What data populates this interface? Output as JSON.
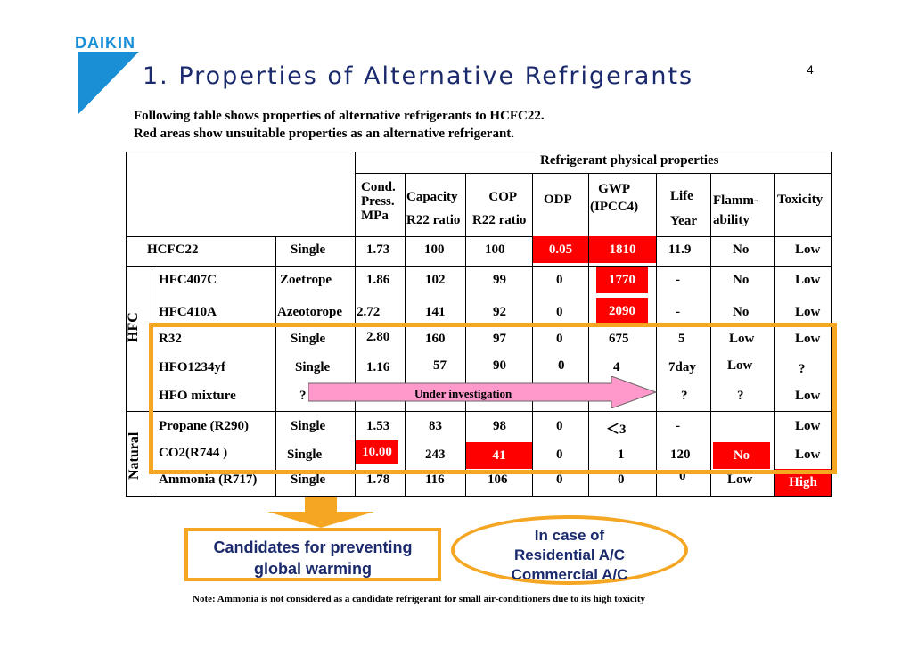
{
  "logo": "DAIKIN",
  "page_number": "4",
  "title": "1. Properties of Alternative Refrigerants",
  "intro": [
    "Following table shows properties of alternative refrigerants to HCFC22.",
    "Red areas show unsuitable properties as an alternative refrigerant."
  ],
  "table": {
    "group_header": "Refrigerant physical properties",
    "headers": {
      "cond": [
        "Cond.",
        "Press.",
        "MPa"
      ],
      "capacity": [
        "Capacity",
        "R22 ratio"
      ],
      "cop": [
        "COP",
        "R22 ratio"
      ],
      "odp": "ODP",
      "gwp": [
        "GWP",
        "(IPCC4)"
      ],
      "life": [
        "Life",
        "Year"
      ],
      "flamm": [
        "Flamm-",
        "ability"
      ],
      "toxicity": "Toxicity"
    },
    "group_labels": {
      "hfc": "HFC",
      "natural": "Natural"
    },
    "rows": [
      {
        "name": "HCFC22",
        "type": "Single",
        "cond": "1.73",
        "cap": "100",
        "cop": "100",
        "odp": "0.05",
        "gwp": "1810",
        "life": "11.9",
        "flamm": "No",
        "tox": "Low"
      },
      {
        "name": "HFC407C",
        "type": "Zoetrope",
        "cond": "1.86",
        "cap": "102",
        "cop": "99",
        "odp": "0",
        "gwp": "1770",
        "life": "-",
        "flamm": "No",
        "tox": "Low"
      },
      {
        "name": "HFC410A",
        "type": "Azeotorope",
        "cond": "2.72",
        "cap": "141",
        "cop": "92",
        "odp": "0",
        "gwp": "2090",
        "life": "-",
        "flamm": "No",
        "tox": "Low"
      },
      {
        "name": "R32",
        "type": "Single",
        "cond": "2.80",
        "cap": "160",
        "cop": "97",
        "odp": "0",
        "gwp": "675",
        "life": "5",
        "flamm": "Low",
        "tox": "Low"
      },
      {
        "name": "HFO1234yf",
        "type": "Single",
        "cond": "1.16",
        "cap": "57",
        "cop": "90",
        "odp": "0",
        "gwp": "4",
        "life": "7day",
        "flamm": "Low",
        "tox": "?"
      },
      {
        "name": "HFO mixture",
        "type": "?",
        "investigation": "Under investigation",
        "life": "?",
        "flamm": "?",
        "tox": "Low"
      },
      {
        "name": "Propane (R290)",
        "type": "Single",
        "cond": "1.53",
        "cap": "83",
        "cop": "98",
        "odp": "0",
        "gwp": "＜3",
        "life": "-",
        "flamm": "",
        "tox": "Low"
      },
      {
        "name": "CO2(R744 )",
        "type": "Single",
        "cond": "10.00",
        "cap": "243",
        "cop": "41",
        "odp": "0",
        "gwp": "1",
        "life": "120",
        "flamm": "No",
        "tox": "Low"
      },
      {
        "name": "Ammonia  (R717)",
        "type": "Single",
        "cond": "1.78",
        "cap": "116",
        "cop": "106",
        "odp": "0",
        "gwp": "0",
        "life": "0",
        "flamm": "Low",
        "tox": "High"
      }
    ]
  },
  "candidates_label": [
    "Candidates for preventing",
    "global warming"
  ],
  "case_label": [
    "In case of",
    "Residential A/C",
    "Commercial A/C"
  ],
  "note": "Note: Ammonia is not considered as a candidate refrigerant for small air-conditioners due to its high toxicity",
  "colors": {
    "red": "#ff0000",
    "orange": "#f5a623",
    "pink_arrow": "#ff99cc",
    "title_blue": "#1a2a6c",
    "logo_blue": "#1a8fd6"
  }
}
